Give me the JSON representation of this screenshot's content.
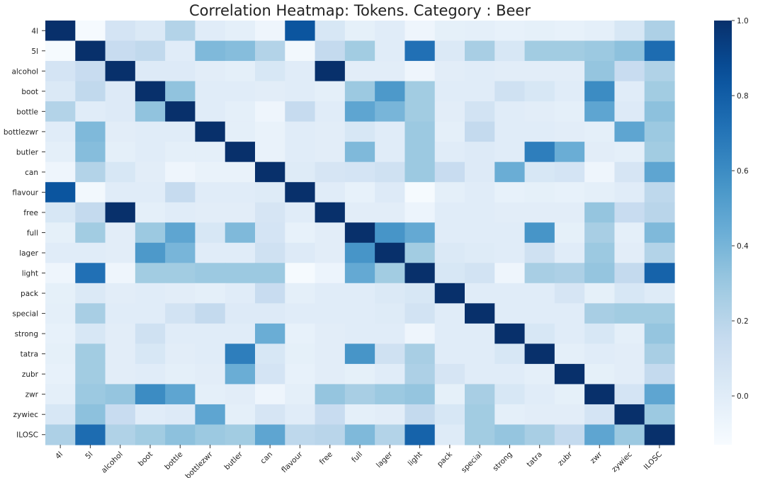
{
  "chart_data": {
    "type": "heatmap",
    "title": "Correlation Heatmap: Tokens. Category : Beer",
    "xlabel": "",
    "ylabel": "",
    "labels": [
      "4l",
      "5l",
      "alcohol",
      "boot",
      "bottle",
      "bottlezwr",
      "butler",
      "can",
      "flavour",
      "free",
      "full",
      "lager",
      "light",
      "pack",
      "special",
      "strong",
      "tatra",
      "zubr",
      "zwr",
      "zywiec",
      "ILOSC"
    ],
    "color_range": [
      -0.13,
      1.0
    ],
    "colormap": "Blues",
    "colorbar_ticks": [
      "0.0",
      "0.2",
      "0.4",
      "0.6",
      "0.8",
      "1.0"
    ],
    "colorbar_tick_values": [
      0.0,
      0.2,
      0.4,
      0.6,
      0.8,
      1.0
    ],
    "matrix": [
      [
        1.0,
        -0.12,
        0.07,
        0.03,
        0.22,
        0.0,
        -0.02,
        -0.08,
        0.84,
        0.05,
        -0.03,
        0.0,
        -0.08,
        -0.03,
        -0.02,
        -0.04,
        -0.03,
        -0.04,
        -0.02,
        0.05,
        0.24
      ],
      [
        -0.12,
        1.0,
        0.14,
        0.17,
        0.0,
        0.38,
        0.36,
        0.22,
        -0.1,
        0.16,
        0.28,
        0.0,
        0.72,
        0.03,
        0.26,
        0.05,
        0.28,
        0.28,
        0.3,
        0.34,
        0.74
      ],
      [
        0.07,
        0.14,
        1.0,
        0.02,
        0.02,
        -0.01,
        -0.02,
        0.05,
        0.0,
        1.0,
        -0.01,
        -0.01,
        -0.08,
        -0.01,
        0.0,
        -0.01,
        -0.01,
        -0.01,
        0.32,
        0.14,
        0.23
      ],
      [
        0.03,
        0.17,
        0.02,
        1.0,
        0.33,
        0.0,
        0.0,
        -0.01,
        0.0,
        -0.02,
        0.3,
        0.54,
        0.28,
        0.0,
        0.0,
        0.1,
        0.05,
        0.0,
        0.6,
        0.0,
        0.28
      ],
      [
        0.22,
        0.0,
        0.02,
        0.33,
        1.0,
        0.0,
        -0.02,
        -0.08,
        0.15,
        0.0,
        0.48,
        0.4,
        0.28,
        -0.01,
        0.08,
        0.0,
        -0.01,
        -0.02,
        0.48,
        0.02,
        0.34
      ],
      [
        0.0,
        0.38,
        -0.01,
        0.0,
        0.0,
        1.0,
        -0.02,
        -0.05,
        0.0,
        -0.01,
        0.05,
        0.0,
        0.3,
        -0.02,
        0.16,
        0.0,
        0.0,
        -0.01,
        -0.02,
        0.48,
        0.3
      ],
      [
        -0.02,
        0.36,
        -0.02,
        0.0,
        -0.02,
        -0.02,
        1.0,
        -0.05,
        0.0,
        -0.01,
        0.38,
        0.0,
        0.3,
        0.0,
        0.02,
        0.0,
        0.66,
        0.44,
        -0.01,
        -0.02,
        0.28
      ],
      [
        -0.08,
        0.22,
        0.05,
        -0.01,
        -0.08,
        -0.05,
        -0.05,
        1.0,
        0.01,
        0.06,
        0.07,
        0.1,
        0.3,
        0.14,
        0.02,
        0.44,
        0.05,
        0.07,
        -0.08,
        0.06,
        0.48
      ],
      [
        0.84,
        -0.1,
        0.0,
        0.0,
        0.15,
        0.0,
        0.0,
        0.01,
        1.0,
        0.0,
        -0.04,
        0.02,
        -0.12,
        -0.02,
        0.0,
        -0.04,
        -0.03,
        -0.04,
        -0.02,
        0.0,
        0.18
      ],
      [
        0.05,
        0.16,
        1.0,
        -0.02,
        0.0,
        -0.01,
        -0.01,
        0.06,
        0.0,
        1.0,
        -0.01,
        -0.01,
        -0.07,
        0.0,
        0.0,
        -0.01,
        -0.01,
        -0.01,
        0.32,
        0.14,
        0.2
      ],
      [
        -0.03,
        0.28,
        -0.01,
        0.3,
        0.48,
        0.05,
        0.38,
        0.07,
        -0.04,
        -0.01,
        1.0,
        0.56,
        0.46,
        0.0,
        0.0,
        0.0,
        0.56,
        -0.03,
        0.26,
        -0.02,
        0.38
      ],
      [
        0.0,
        0.0,
        -0.01,
        0.54,
        0.4,
        0.0,
        0.0,
        0.1,
        0.02,
        -0.01,
        0.56,
        1.0,
        0.28,
        0.03,
        0.01,
        0.0,
        0.1,
        0.0,
        0.3,
        -0.01,
        0.22
      ],
      [
        -0.08,
        0.72,
        -0.08,
        0.28,
        0.28,
        0.3,
        0.3,
        0.3,
        -0.12,
        -0.07,
        0.46,
        0.28,
        1.0,
        0.05,
        0.08,
        -0.08,
        0.26,
        0.24,
        0.32,
        0.16,
        0.78
      ],
      [
        -0.03,
        0.03,
        -0.01,
        0.0,
        -0.01,
        -0.02,
        0.0,
        0.14,
        -0.02,
        0.0,
        0.0,
        0.03,
        0.05,
        1.0,
        0.0,
        0.0,
        0.0,
        0.06,
        -0.03,
        0.05,
        0.01
      ],
      [
        -0.02,
        0.26,
        0.0,
        0.0,
        0.08,
        0.16,
        0.02,
        0.02,
        0.0,
        0.0,
        0.0,
        0.01,
        0.08,
        0.0,
        1.0,
        0.0,
        0.0,
        0.0,
        0.26,
        0.28,
        0.28
      ],
      [
        -0.04,
        0.05,
        -0.01,
        0.1,
        0.0,
        0.0,
        0.0,
        0.44,
        -0.04,
        -0.01,
        0.0,
        0.0,
        -0.08,
        0.0,
        0.0,
        1.0,
        0.05,
        0.0,
        0.05,
        -0.02,
        0.32
      ],
      [
        -0.03,
        0.28,
        -0.01,
        0.05,
        -0.01,
        0.0,
        0.66,
        0.05,
        -0.03,
        -0.01,
        0.56,
        0.1,
        0.26,
        0.0,
        0.0,
        0.05,
        1.0,
        -0.02,
        0.0,
        -0.01,
        0.26
      ],
      [
        -0.04,
        0.28,
        -0.01,
        0.0,
        -0.02,
        -0.01,
        0.44,
        0.07,
        -0.04,
        -0.01,
        -0.03,
        0.0,
        0.24,
        0.06,
        0.0,
        0.0,
        -0.02,
        1.0,
        -0.03,
        -0.01,
        0.16
      ],
      [
        -0.02,
        0.3,
        0.32,
        0.6,
        0.48,
        -0.02,
        -0.01,
        -0.08,
        -0.02,
        0.32,
        0.26,
        0.3,
        0.32,
        -0.03,
        0.26,
        0.05,
        0.0,
        -0.03,
        1.0,
        0.07,
        0.48
      ],
      [
        0.05,
        0.34,
        0.14,
        0.0,
        0.02,
        0.48,
        -0.02,
        0.06,
        0.0,
        0.14,
        -0.02,
        -0.01,
        0.16,
        0.05,
        0.28,
        -0.02,
        -0.01,
        -0.01,
        0.07,
        1.0,
        0.3
      ],
      [
        0.24,
        0.74,
        0.23,
        0.28,
        0.34,
        0.3,
        0.28,
        0.48,
        0.18,
        0.2,
        0.38,
        0.22,
        0.78,
        0.01,
        0.28,
        0.32,
        0.26,
        0.16,
        0.48,
        0.3,
        1.0
      ]
    ]
  }
}
